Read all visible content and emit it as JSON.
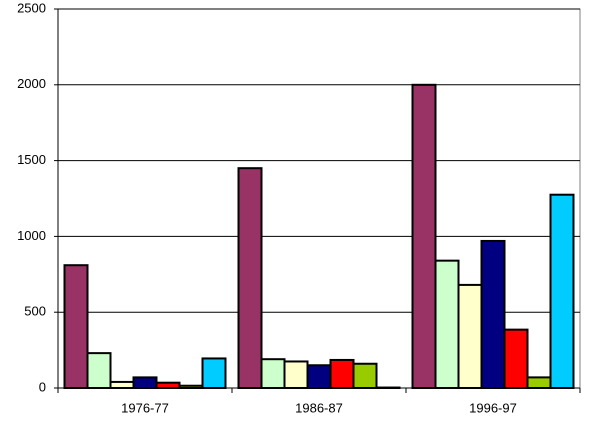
{
  "chart_data": {
    "type": "bar",
    "categories": [
      "1976-77",
      "1986-87",
      "1996-97"
    ],
    "series": [
      {
        "color": "#993366",
        "values": [
          810,
          1450,
          2000
        ]
      },
      {
        "color": "#ccffcc",
        "values": [
          230,
          190,
          840
        ]
      },
      {
        "color": "#ffffcc",
        "values": [
          40,
          175,
          680
        ]
      },
      {
        "color": "#000080",
        "values": [
          70,
          150,
          970
        ]
      },
      {
        "color": "#ff0000",
        "values": [
          35,
          185,
          385
        ]
      },
      {
        "color": "#99cc00",
        "values": [
          15,
          160,
          70
        ]
      },
      {
        "color": "#00ccff",
        "values": [
          195,
          3,
          1275
        ]
      }
    ],
    "ylim": [
      0,
      2500
    ],
    "yticks": [
      0,
      500,
      1000,
      1500,
      2000,
      2500
    ],
    "grid": true
  }
}
